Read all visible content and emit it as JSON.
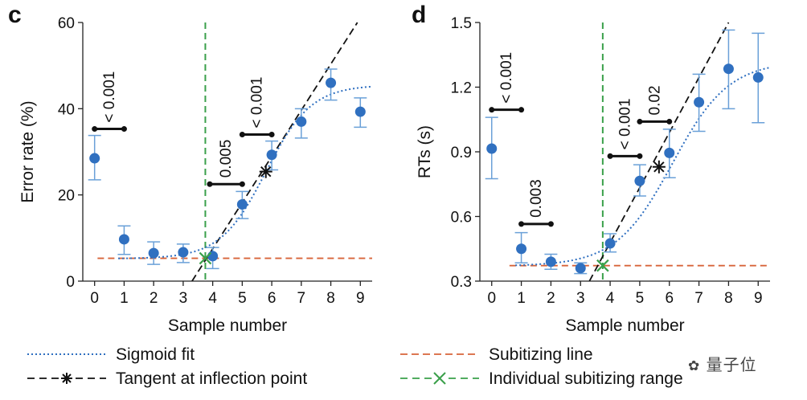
{
  "chart_data": [
    {
      "panel": "c",
      "type": "scatter",
      "xlabel": "Sample number",
      "ylabel": "Error rate (%)",
      "xlim": [
        -0.4,
        9.4
      ],
      "ylim": [
        0,
        60
      ],
      "xticks": [
        "0",
        "1",
        "2",
        "3",
        "4",
        "5",
        "6",
        "7",
        "8",
        "9"
      ],
      "yticks": [
        "0",
        "20",
        "40",
        "60"
      ],
      "points": [
        {
          "x": 0,
          "y": 28.5,
          "lo": 23.5,
          "hi": 33.8
        },
        {
          "x": 1,
          "y": 9.7,
          "lo": 6.2,
          "hi": 12.8
        },
        {
          "x": 2,
          "y": 6.5,
          "lo": 3.9,
          "hi": 9.1
        },
        {
          "x": 3,
          "y": 6.7,
          "lo": 4.3,
          "hi": 8.6
        },
        {
          "x": 4,
          "y": 5.8,
          "lo": 2.9,
          "hi": 7.8
        },
        {
          "x": 5,
          "y": 17.8,
          "lo": 14.5,
          "hi": 20.8
        },
        {
          "x": 6,
          "y": 29.3,
          "lo": 25.8,
          "hi": 32.5
        },
        {
          "x": 7,
          "y": 37.0,
          "lo": 33.2,
          "hi": 40.0
        },
        {
          "x": 8,
          "y": 46.0,
          "lo": 42.0,
          "hi": 49.2
        },
        {
          "x": 9,
          "y": 39.3,
          "lo": 35.7,
          "hi": 42.5
        }
      ],
      "sigmoid": {
        "lower": 5.2,
        "upper": 45.5,
        "mid": 5.8,
        "k": 1.3
      },
      "tangent": {
        "x1": 3.3,
        "y1": 0,
        "x2": 8.9,
        "y2": 60
      },
      "inflection": {
        "x": 5.8,
        "y": 25.4
      },
      "subitizing_line": {
        "y": 5.3,
        "x_from": 0.1,
        "x_to": 9.4
      },
      "individual_range": {
        "x": 3.75,
        "marker_y": 5.3
      },
      "brackets": [
        {
          "x1": 0,
          "x2": 1,
          "y": 35.3,
          "label": "< 0.001"
        },
        {
          "x1": 3.9,
          "x2": 5,
          "y": 22.5,
          "label": "0.005"
        },
        {
          "x1": 5,
          "x2": 6,
          "y": 34.0,
          "label": "< 0.001"
        }
      ]
    },
    {
      "panel": "d",
      "type": "scatter",
      "xlabel": "Sample number",
      "ylabel": "RTs (s)",
      "xlim": [
        -0.4,
        9.4
      ],
      "ylim": [
        0.3,
        1.5
      ],
      "xticks": [
        "0",
        "1",
        "2",
        "3",
        "4",
        "5",
        "6",
        "7",
        "8",
        "9"
      ],
      "yticks": [
        "0.3",
        "0.6",
        "0.9",
        "1.2",
        "1.5"
      ],
      "points": [
        {
          "x": 0,
          "y": 0.915,
          "lo": 0.775,
          "hi": 1.06
        },
        {
          "x": 1,
          "y": 0.45,
          "lo": 0.385,
          "hi": 0.525
        },
        {
          "x": 2,
          "y": 0.39,
          "lo": 0.355,
          "hi": 0.425
        },
        {
          "x": 3,
          "y": 0.36,
          "lo": 0.335,
          "hi": 0.385
        },
        {
          "x": 4,
          "y": 0.475,
          "lo": 0.435,
          "hi": 0.52
        },
        {
          "x": 5,
          "y": 0.765,
          "lo": 0.695,
          "hi": 0.84
        },
        {
          "x": 6,
          "y": 0.895,
          "lo": 0.78,
          "hi": 1.005
        },
        {
          "x": 7,
          "y": 1.13,
          "lo": 0.995,
          "hi": 1.26
        },
        {
          "x": 8,
          "y": 1.285,
          "lo": 1.1,
          "hi": 1.465
        },
        {
          "x": 9,
          "y": 1.245,
          "lo": 1.035,
          "hi": 1.45
        }
      ],
      "sigmoid": {
        "lower": 0.37,
        "upper": 1.32,
        "mid": 6.1,
        "k": 1.05
      },
      "tangent": {
        "x1": 3.3,
        "y1": 0.3,
        "x2": 8.0,
        "y2": 1.5
      },
      "inflection": {
        "x": 5.65,
        "y": 0.83
      },
      "subitizing_line": {
        "y": 0.372,
        "x_from": 0.6,
        "x_to": 9.4
      },
      "individual_range": {
        "x": 3.75,
        "marker_y": 0.372
      },
      "brackets": [
        {
          "x1": 0,
          "x2": 1,
          "y": 1.095,
          "label": "< 0.001"
        },
        {
          "x1": 1,
          "x2": 2,
          "y": 0.565,
          "label": "0.003"
        },
        {
          "x1": 4,
          "x2": 5,
          "y": 0.88,
          "label": "< 0.001"
        },
        {
          "x1": 5,
          "x2": 6,
          "y": 1.04,
          "label": "0.02"
        }
      ]
    }
  ],
  "legend": {
    "items": [
      {
        "label": "Sigmoid fit",
        "style": "dotted",
        "color": "#2f6fc0"
      },
      {
        "label": "Tangent at inflection point",
        "style": "dash-star",
        "color": "#111111"
      },
      {
        "label": "Subitizing line",
        "style": "dashed",
        "color": "#d8643a"
      },
      {
        "label": "Individual subitizing range",
        "style": "dash-x",
        "color": "#3aa04a"
      }
    ]
  },
  "colors": {
    "point": "#3070c0",
    "errorbar": "#6aa0d8",
    "sigmoid": "#2f6fc0",
    "tangent": "#111111",
    "subitizing": "#d8643a",
    "range": "#3aa04a",
    "axis": "#222222"
  },
  "watermark": "量子位"
}
